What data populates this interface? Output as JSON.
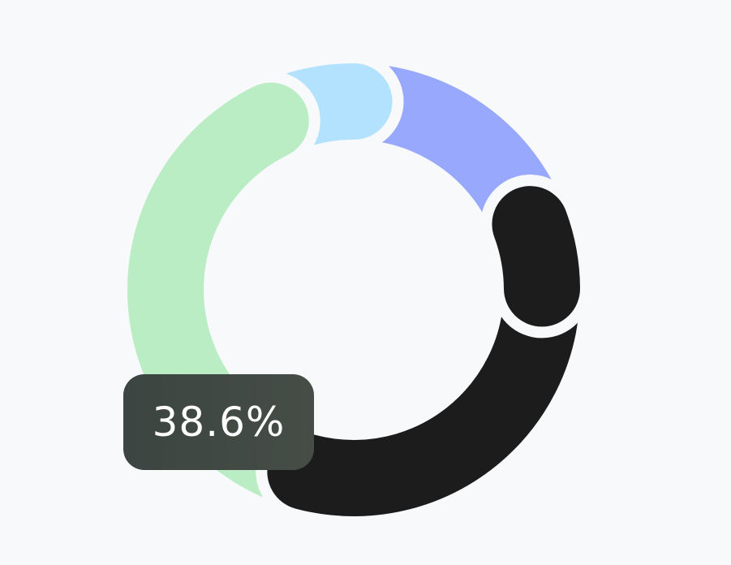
{
  "chart_data": {
    "type": "pie",
    "variant": "donut",
    "slices": [
      {
        "value": 34.8,
        "color": "#1c1c1c"
      },
      {
        "value": 38.6,
        "color": "#baedc4"
      },
      {
        "value": 7.3,
        "color": "#b3e2ff"
      },
      {
        "value": 19.3,
        "color": "#97a8fd"
      }
    ],
    "background": "#f7f9fb",
    "highlighted_slice": 1,
    "tooltip": {
      "text": "38.6%",
      "background": "#3f4843",
      "text_color": "#ffffff"
    },
    "legend": "none"
  }
}
